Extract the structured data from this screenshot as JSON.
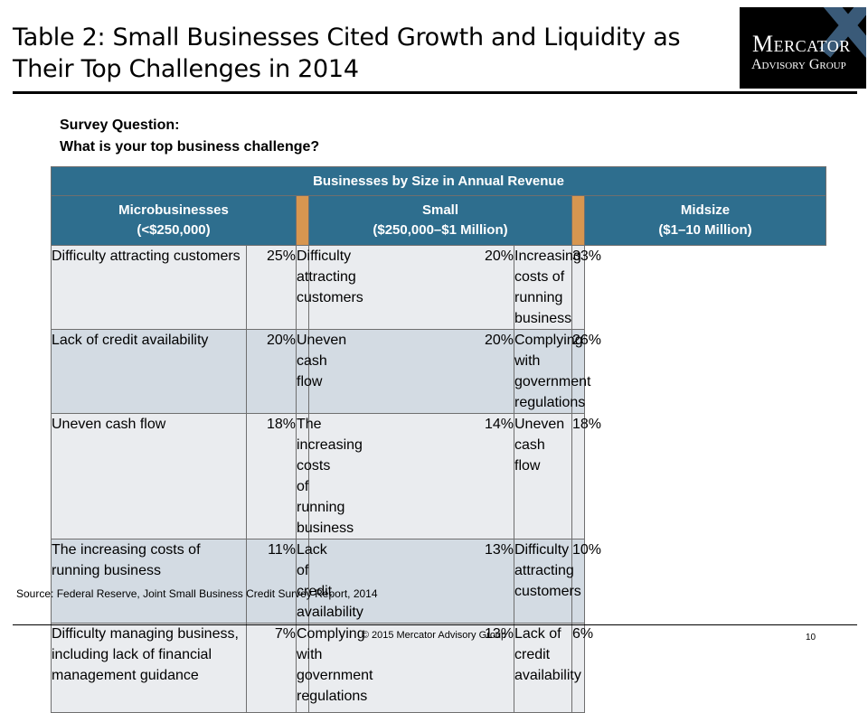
{
  "title": {
    "line1": "Table 2: Small Businesses Cited Growth and Liquidity as",
    "line2": "Their Top Challenges in 2014"
  },
  "logo": {
    "word1": "Mercator",
    "word2": "Advisory Group"
  },
  "question": {
    "label": "Survey Question:",
    "text": "What is your top business challenge?"
  },
  "table": {
    "super_header": "Businesses by Size in Annual Revenue",
    "groups": [
      {
        "name": "Microbusinesses",
        "range": "(<$250,000)"
      },
      {
        "name": "Small",
        "range": "($250,000–$1 Million)"
      },
      {
        "name": "Midsize",
        "range": "($1–10 Million)"
      }
    ],
    "rows": [
      [
        {
          "label": "Difficulty attracting customers",
          "value": "25%"
        },
        {
          "label": "Difficulty attracting customers",
          "value": "20%"
        },
        {
          "label": "Increasing costs of running business",
          "value": "33%"
        }
      ],
      [
        {
          "label": "Lack of credit availability",
          "value": "20%"
        },
        {
          "label": "Uneven cash flow",
          "value": "20%"
        },
        {
          "label": "Complying with government regulations",
          "value": "26%"
        }
      ],
      [
        {
          "label": "Uneven cash flow",
          "value": "18%"
        },
        {
          "label": "The increasing costs of running business",
          "value": "14%"
        },
        {
          "label": "Uneven cash flow",
          "value": "18%"
        }
      ],
      [
        {
          "label": "The increasing costs of running business",
          "value": "11%"
        },
        {
          "label": "Lack of credit availability",
          "value": "13%"
        },
        {
          "label": "Difficulty attracting customers",
          "value": "10%"
        }
      ],
      [
        {
          "label": "Difficulty managing business, including lack of financial management guidance",
          "value": "7%"
        },
        {
          "label": "Complying with government regulations",
          "value": "13%"
        },
        {
          "label": "Lack of credit availability",
          "value": "6%"
        }
      ]
    ]
  },
  "source": "Source: Federal Reserve, Joint Small Business Credit Survey Report, 2014",
  "footer": {
    "copyright": "© 2015 Mercator Advisory Group",
    "page": "10"
  }
}
